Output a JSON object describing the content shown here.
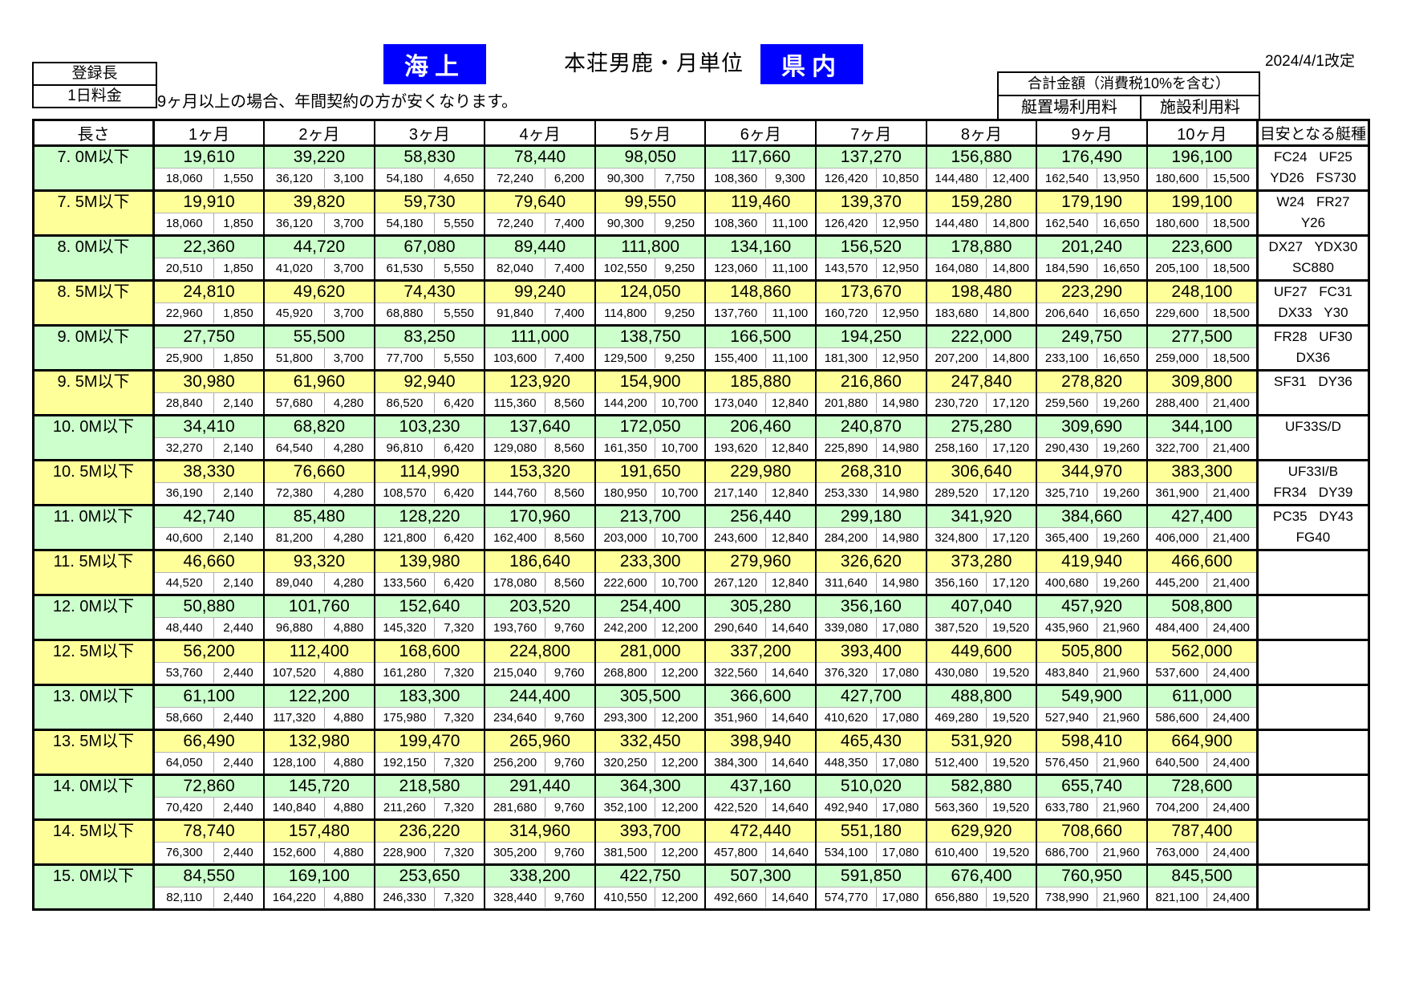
{
  "header": {
    "registration_label": "登録長",
    "daily_fee_label": "1日料金",
    "sea_badge": "海上",
    "title": "本荘男鹿・月単位",
    "prefecture_badge": "県内",
    "revision_date": "2024/4/1改定",
    "note": "9ヶ月以上の場合、年間契約の方が安くなります。",
    "total_box": {
      "total_label": "合計金額（消費税10%を含む）",
      "berth_label": "艇置場利用料",
      "facility_label": "施設利用料"
    }
  },
  "colors": {
    "row_green": "#ccffcc",
    "row_yellow": "#ffff99",
    "badge_blue": "#0000ff",
    "border_black": "#000000"
  },
  "table": {
    "length_header": "長さ",
    "month_headers": [
      "1ヶ月",
      "2ヶ月",
      "3ヶ月",
      "4ヶ月",
      "5ヶ月",
      "6ヶ月",
      "7ヶ月",
      "8ヶ月",
      "9ヶ月",
      "10ヶ月"
    ],
    "boat_type_header": "目安となる艇種",
    "rows": [
      {
        "length": "7. 0M以下",
        "color": "green",
        "totals": [
          "19,610",
          "39,220",
          "58,830",
          "78,440",
          "98,050",
          "117,660",
          "137,270",
          "156,880",
          "176,490",
          "196,100"
        ],
        "berth": [
          "18,060",
          "36,120",
          "54,180",
          "72,240",
          "90,300",
          "108,360",
          "126,420",
          "144,480",
          "162,540",
          "180,600"
        ],
        "facility": [
          "1,550",
          "3,100",
          "4,650",
          "6,200",
          "7,750",
          "9,300",
          "10,850",
          "12,400",
          "13,950",
          "15,500"
        ],
        "boat_types": [
          "FC24 UF25",
          "YD26 FS730"
        ]
      },
      {
        "length": "7. 5M以下",
        "color": "yellow",
        "totals": [
          "19,910",
          "39,820",
          "59,730",
          "79,640",
          "99,550",
          "119,460",
          "139,370",
          "159,280",
          "179,190",
          "199,100"
        ],
        "berth": [
          "18,060",
          "36,120",
          "54,180",
          "72,240",
          "90,300",
          "108,360",
          "126,420",
          "144,480",
          "162,540",
          "180,600"
        ],
        "facility": [
          "1,850",
          "3,700",
          "5,550",
          "7,400",
          "9,250",
          "11,100",
          "12,950",
          "14,800",
          "16,650",
          "18,500"
        ],
        "boat_types": [
          "W24 FR27",
          "Y26"
        ]
      },
      {
        "length": "8. 0M以下",
        "color": "green",
        "totals": [
          "22,360",
          "44,720",
          "67,080",
          "89,440",
          "111,800",
          "134,160",
          "156,520",
          "178,880",
          "201,240",
          "223,600"
        ],
        "berth": [
          "20,510",
          "41,020",
          "61,530",
          "82,040",
          "102,550",
          "123,060",
          "143,570",
          "164,080",
          "184,590",
          "205,100"
        ],
        "facility": [
          "1,850",
          "3,700",
          "5,550",
          "7,400",
          "9,250",
          "11,100",
          "12,950",
          "14,800",
          "16,650",
          "18,500"
        ],
        "boat_types": [
          "DX27 YDX30",
          "SC880"
        ]
      },
      {
        "length": "8. 5M以下",
        "color": "yellow",
        "totals": [
          "24,810",
          "49,620",
          "74,430",
          "99,240",
          "124,050",
          "148,860",
          "173,670",
          "198,480",
          "223,290",
          "248,100"
        ],
        "berth": [
          "22,960",
          "45,920",
          "68,880",
          "91,840",
          "114,800",
          "137,760",
          "160,720",
          "183,680",
          "206,640",
          "229,600"
        ],
        "facility": [
          "1,850",
          "3,700",
          "5,550",
          "7,400",
          "9,250",
          "11,100",
          "12,950",
          "14,800",
          "16,650",
          "18,500"
        ],
        "boat_types": [
          "UF27 FC31",
          "DX33 Y30"
        ]
      },
      {
        "length": "9. 0M以下",
        "color": "green",
        "totals": [
          "27,750",
          "55,500",
          "83,250",
          "111,000",
          "138,750",
          "166,500",
          "194,250",
          "222,000",
          "249,750",
          "277,500"
        ],
        "berth": [
          "25,900",
          "51,800",
          "77,700",
          "103,600",
          "129,500",
          "155,400",
          "181,300",
          "207,200",
          "233,100",
          "259,000"
        ],
        "facility": [
          "1,850",
          "3,700",
          "5,550",
          "7,400",
          "9,250",
          "11,100",
          "12,950",
          "14,800",
          "16,650",
          "18,500"
        ],
        "boat_types": [
          "FR28 UF30",
          "DX36"
        ]
      },
      {
        "length": "9. 5M以下",
        "color": "yellow",
        "totals": [
          "30,980",
          "61,960",
          "92,940",
          "123,920",
          "154,900",
          "185,880",
          "216,860",
          "247,840",
          "278,820",
          "309,800"
        ],
        "berth": [
          "28,840",
          "57,680",
          "86,520",
          "115,360",
          "144,200",
          "173,040",
          "201,880",
          "230,720",
          "259,560",
          "288,400"
        ],
        "facility": [
          "2,140",
          "4,280",
          "6,420",
          "8,560",
          "10,700",
          "12,840",
          "14,980",
          "17,120",
          "19,260",
          "21,400"
        ],
        "boat_types": [
          "SF31 DY36",
          ""
        ]
      },
      {
        "length": "10. 0M以下",
        "color": "green",
        "totals": [
          "34,410",
          "68,820",
          "103,230",
          "137,640",
          "172,050",
          "206,460",
          "240,870",
          "275,280",
          "309,690",
          "344,100"
        ],
        "berth": [
          "32,270",
          "64,540",
          "96,810",
          "129,080",
          "161,350",
          "193,620",
          "225,890",
          "258,160",
          "290,430",
          "322,700"
        ],
        "facility": [
          "2,140",
          "4,280",
          "6,420",
          "8,560",
          "10,700",
          "12,840",
          "14,980",
          "17,120",
          "19,260",
          "21,400"
        ],
        "boat_types": [
          "UF33S/D",
          ""
        ]
      },
      {
        "length": "10. 5M以下",
        "color": "yellow",
        "totals": [
          "38,330",
          "76,660",
          "114,990",
          "153,320",
          "191,650",
          "229,980",
          "268,310",
          "306,640",
          "344,970",
          "383,300"
        ],
        "berth": [
          "36,190",
          "72,380",
          "108,570",
          "144,760",
          "180,950",
          "217,140",
          "253,330",
          "289,520",
          "325,710",
          "361,900"
        ],
        "facility": [
          "2,140",
          "4,280",
          "6,420",
          "8,560",
          "10,700",
          "12,840",
          "14,980",
          "17,120",
          "19,260",
          "21,400"
        ],
        "boat_types": [
          "UF33I/B",
          "FR34 DY39"
        ]
      },
      {
        "length": "11. 0M以下",
        "color": "green",
        "totals": [
          "42,740",
          "85,480",
          "128,220",
          "170,960",
          "213,700",
          "256,440",
          "299,180",
          "341,920",
          "384,660",
          "427,400"
        ],
        "berth": [
          "40,600",
          "81,200",
          "121,800",
          "162,400",
          "203,000",
          "243,600",
          "284,200",
          "324,800",
          "365,400",
          "406,000"
        ],
        "facility": [
          "2,140",
          "4,280",
          "6,420",
          "8,560",
          "10,700",
          "12,840",
          "14,980",
          "17,120",
          "19,260",
          "21,400"
        ],
        "boat_types": [
          "PC35 DY43",
          "FG40"
        ]
      },
      {
        "length": "11. 5M以下",
        "color": "yellow",
        "totals": [
          "46,660",
          "93,320",
          "139,980",
          "186,640",
          "233,300",
          "279,960",
          "326,620",
          "373,280",
          "419,940",
          "466,600"
        ],
        "berth": [
          "44,520",
          "89,040",
          "133,560",
          "178,080",
          "222,600",
          "267,120",
          "311,640",
          "356,160",
          "400,680",
          "445,200"
        ],
        "facility": [
          "2,140",
          "4,280",
          "6,420",
          "8,560",
          "10,700",
          "12,840",
          "14,980",
          "17,120",
          "19,260",
          "21,400"
        ],
        "boat_types": [
          "",
          ""
        ]
      },
      {
        "length": "12. 0M以下",
        "color": "green",
        "totals": [
          "50,880",
          "101,760",
          "152,640",
          "203,520",
          "254,400",
          "305,280",
          "356,160",
          "407,040",
          "457,920",
          "508,800"
        ],
        "berth": [
          "48,440",
          "96,880",
          "145,320",
          "193,760",
          "242,200",
          "290,640",
          "339,080",
          "387,520",
          "435,960",
          "484,400"
        ],
        "facility": [
          "2,440",
          "4,880",
          "7,320",
          "9,760",
          "12,200",
          "14,640",
          "17,080",
          "19,520",
          "21,960",
          "24,400"
        ],
        "boat_types": [
          "",
          ""
        ]
      },
      {
        "length": "12. 5M以下",
        "color": "yellow",
        "totals": [
          "56,200",
          "112,400",
          "168,600",
          "224,800",
          "281,000",
          "337,200",
          "393,400",
          "449,600",
          "505,800",
          "562,000"
        ],
        "berth": [
          "53,760",
          "107,520",
          "161,280",
          "215,040",
          "268,800",
          "322,560",
          "376,320",
          "430,080",
          "483,840",
          "537,600"
        ],
        "facility": [
          "2,440",
          "4,880",
          "7,320",
          "9,760",
          "12,200",
          "14,640",
          "17,080",
          "19,520",
          "21,960",
          "24,400"
        ],
        "boat_types": [
          "",
          ""
        ]
      },
      {
        "length": "13. 0M以下",
        "color": "green",
        "totals": [
          "61,100",
          "122,200",
          "183,300",
          "244,400",
          "305,500",
          "366,600",
          "427,700",
          "488,800",
          "549,900",
          "611,000"
        ],
        "berth": [
          "58,660",
          "117,320",
          "175,980",
          "234,640",
          "293,300",
          "351,960",
          "410,620",
          "469,280",
          "527,940",
          "586,600"
        ],
        "facility": [
          "2,440",
          "4,880",
          "7,320",
          "9,760",
          "12,200",
          "14,640",
          "17,080",
          "19,520",
          "21,960",
          "24,400"
        ],
        "boat_types": [
          "",
          ""
        ]
      },
      {
        "length": "13. 5M以下",
        "color": "yellow",
        "totals": [
          "66,490",
          "132,980",
          "199,470",
          "265,960",
          "332,450",
          "398,940",
          "465,430",
          "531,920",
          "598,410",
          "664,900"
        ],
        "berth": [
          "64,050",
          "128,100",
          "192,150",
          "256,200",
          "320,250",
          "384,300",
          "448,350",
          "512,400",
          "576,450",
          "640,500"
        ],
        "facility": [
          "2,440",
          "4,880",
          "7,320",
          "9,760",
          "12,200",
          "14,640",
          "17,080",
          "19,520",
          "21,960",
          "24,400"
        ],
        "boat_types": [
          "",
          ""
        ]
      },
      {
        "length": "14. 0M以下",
        "color": "green",
        "totals": [
          "72,860",
          "145,720",
          "218,580",
          "291,440",
          "364,300",
          "437,160",
          "510,020",
          "582,880",
          "655,740",
          "728,600"
        ],
        "berth": [
          "70,420",
          "140,840",
          "211,260",
          "281,680",
          "352,100",
          "422,520",
          "492,940",
          "563,360",
          "633,780",
          "704,200"
        ],
        "facility": [
          "2,440",
          "4,880",
          "7,320",
          "9,760",
          "12,200",
          "14,640",
          "17,080",
          "19,520",
          "21,960",
          "24,400"
        ],
        "boat_types": [
          "",
          ""
        ]
      },
      {
        "length": "14. 5M以下",
        "color": "yellow",
        "totals": [
          "78,740",
          "157,480",
          "236,220",
          "314,960",
          "393,700",
          "472,440",
          "551,180",
          "629,920",
          "708,660",
          "787,400"
        ],
        "berth": [
          "76,300",
          "152,600",
          "228,900",
          "305,200",
          "381,500",
          "457,800",
          "534,100",
          "610,400",
          "686,700",
          "763,000"
        ],
        "facility": [
          "2,440",
          "4,880",
          "7,320",
          "9,760",
          "12,200",
          "14,640",
          "17,080",
          "19,520",
          "21,960",
          "24,400"
        ],
        "boat_types": [
          "",
          ""
        ]
      },
      {
        "length": "15. 0M以下",
        "color": "green",
        "totals": [
          "84,550",
          "169,100",
          "253,650",
          "338,200",
          "422,750",
          "507,300",
          "591,850",
          "676,400",
          "760,950",
          "845,500"
        ],
        "berth": [
          "82,110",
          "164,220",
          "246,330",
          "328,440",
          "410,550",
          "492,660",
          "574,770",
          "656,880",
          "738,990",
          "821,100"
        ],
        "facility": [
          "2,440",
          "4,880",
          "7,320",
          "9,760",
          "12,200",
          "14,640",
          "17,080",
          "19,520",
          "21,960",
          "24,400"
        ],
        "boat_types": [
          "",
          ""
        ]
      }
    ]
  }
}
